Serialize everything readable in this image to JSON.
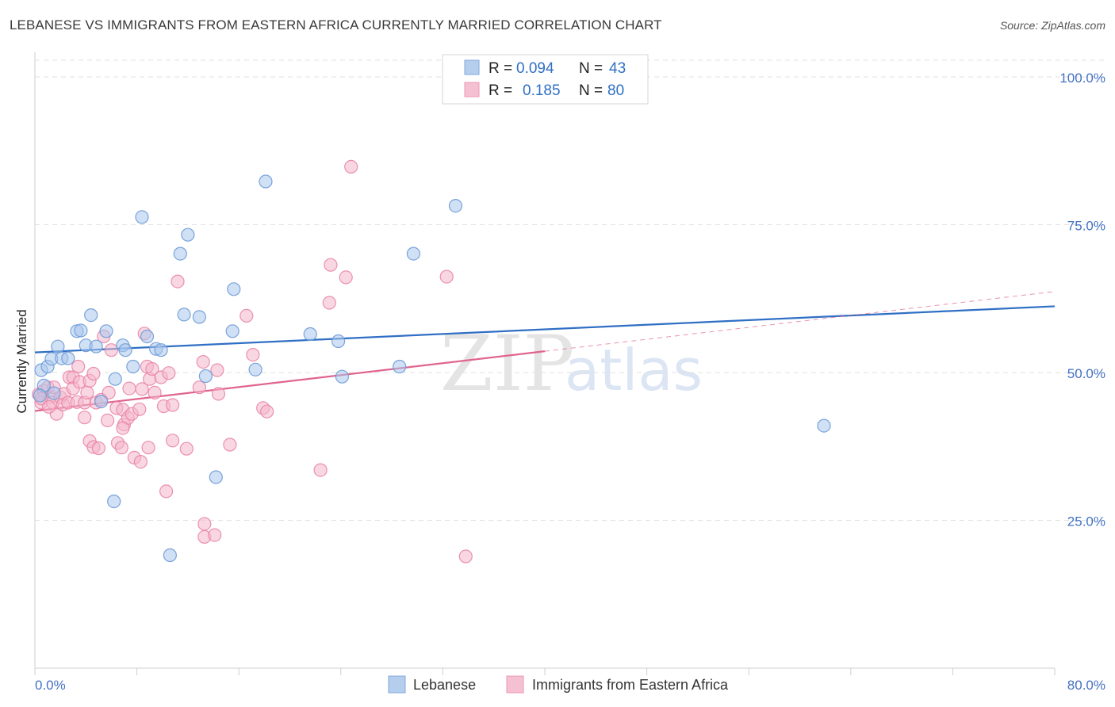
{
  "title": "LEBANESE VS IMMIGRANTS FROM EASTERN AFRICA CURRENTLY MARRIED CORRELATION CHART",
  "source": "Source: ZipAtlas.com",
  "watermark": {
    "zip": "ZIP",
    "atlas": "atlas"
  },
  "colors": {
    "blue_fill": "#a9c6ec",
    "blue_stroke": "#6d9ad6",
    "blue_line": "#2f6fc4",
    "pink_fill": "#f4b7cb",
    "pink_stroke": "#e985a7",
    "pink_line": "#e0648f",
    "grid": "#e2e2e2",
    "tick_label": "#4472c4"
  },
  "legend": {
    "rows": [
      {
        "r_label": "R = ",
        "r_value": "0.094",
        "n_label": "N = ",
        "n_value": "43"
      },
      {
        "r_label": "R = ",
        "r_value": "0.185",
        "n_label": "N = ",
        "n_value": "80"
      }
    ]
  },
  "chart_data": {
    "type": "scatter",
    "title": "LEBANESE VS IMMIGRANTS FROM EASTERN AFRICA CURRENTLY MARRIED CORRELATION CHART",
    "xlabel": "",
    "ylabel": "Currently Married",
    "xlim": [
      0,
      80
    ],
    "ylim": [
      0,
      100
    ],
    "x_tick_labels": [
      "0.0%",
      "80.0%"
    ],
    "y_ticks": [
      25,
      50,
      75,
      100
    ],
    "y_tick_labels": [
      "25.0%",
      "50.0%",
      "75.0%",
      "100.0%"
    ],
    "grid": "horizontal dashed",
    "legend_placement": "top-center",
    "series": [
      {
        "name": "Lebanese",
        "color": "#a9c6ec",
        "R": 0.094,
        "N": 43,
        "trend": {
          "x": [
            0,
            80
          ],
          "y": [
            53.4,
            61.2
          ]
        },
        "points": [
          [
            0.5,
            50.4
          ],
          [
            1.0,
            51.0
          ],
          [
            1.3,
            52.3
          ],
          [
            1.8,
            54.4
          ],
          [
            2.1,
            52.4
          ],
          [
            2.6,
            52.4
          ],
          [
            3.3,
            57.0
          ],
          [
            3.6,
            57.1
          ],
          [
            4.4,
            59.7
          ],
          [
            4.0,
            54.6
          ],
          [
            4.8,
            54.4
          ],
          [
            5.6,
            57.0
          ],
          [
            6.3,
            48.9
          ],
          [
            6.9,
            54.6
          ],
          [
            7.1,
            53.8
          ],
          [
            7.7,
            51.0
          ],
          [
            8.8,
            56.1
          ],
          [
            8.4,
            76.3
          ],
          [
            9.5,
            54.0
          ],
          [
            9.9,
            53.8
          ],
          [
            11.4,
            70.1
          ],
          [
            12.0,
            73.3
          ],
          [
            11.7,
            59.8
          ],
          [
            12.9,
            59.4
          ],
          [
            13.4,
            49.4
          ],
          [
            14.2,
            32.3
          ],
          [
            15.5,
            57.0
          ],
          [
            15.6,
            64.1
          ],
          [
            17.3,
            50.5
          ],
          [
            18.1,
            82.3
          ],
          [
            21.6,
            56.5
          ],
          [
            23.8,
            55.3
          ],
          [
            24.1,
            49.3
          ],
          [
            28.6,
            51.0
          ],
          [
            29.7,
            70.1
          ],
          [
            33.0,
            78.2
          ],
          [
            61.9,
            41.0
          ],
          [
            6.2,
            28.2
          ],
          [
            10.6,
            19.1
          ],
          [
            0.7,
            47.8
          ],
          [
            5.2,
            45.1
          ],
          [
            0.4,
            46.1
          ],
          [
            1.5,
            46.5
          ]
        ]
      },
      {
        "name": "Immigrants from Eastern Africa",
        "color": "#f4b7cb",
        "R": 0.185,
        "N": 80,
        "trend": {
          "x": [
            0,
            40
          ],
          "y": [
            43.5,
            53.6
          ]
        },
        "trend_extension": {
          "x": [
            40,
            80
          ],
          "y": [
            53.6,
            63.7
          ]
        },
        "points": [
          [
            0.3,
            46.3
          ],
          [
            0.5,
            44.9
          ],
          [
            0.7,
            46.9
          ],
          [
            1.0,
            47.5
          ],
          [
            1.2,
            45.9
          ],
          [
            1.4,
            44.9
          ],
          [
            1.5,
            47.5
          ],
          [
            1.7,
            43.0
          ],
          [
            2.0,
            45.8
          ],
          [
            2.2,
            44.6
          ],
          [
            2.3,
            46.4
          ],
          [
            2.6,
            44.9
          ],
          [
            2.7,
            49.2
          ],
          [
            3.0,
            49.2
          ],
          [
            3.0,
            47.3
          ],
          [
            3.3,
            45.0
          ],
          [
            3.4,
            51.0
          ],
          [
            3.5,
            48.4
          ],
          [
            3.9,
            44.9
          ],
          [
            3.9,
            42.4
          ],
          [
            4.1,
            46.6
          ],
          [
            4.3,
            48.6
          ],
          [
            4.3,
            38.4
          ],
          [
            4.6,
            49.8
          ],
          [
            4.6,
            37.4
          ],
          [
            4.8,
            44.9
          ],
          [
            5.0,
            37.2
          ],
          [
            5.2,
            45.4
          ],
          [
            5.4,
            56.1
          ],
          [
            5.7,
            41.9
          ],
          [
            5.8,
            46.6
          ],
          [
            6.0,
            53.8
          ],
          [
            6.4,
            44.0
          ],
          [
            6.5,
            38.1
          ],
          [
            6.8,
            37.3
          ],
          [
            6.9,
            43.7
          ],
          [
            7.0,
            41.2
          ],
          [
            7.3,
            42.3
          ],
          [
            7.4,
            47.3
          ],
          [
            7.6,
            43.0
          ],
          [
            7.8,
            35.6
          ],
          [
            8.2,
            43.8
          ],
          [
            8.3,
            34.9
          ],
          [
            8.4,
            47.2
          ],
          [
            8.6,
            56.6
          ],
          [
            8.8,
            51.0
          ],
          [
            8.9,
            37.3
          ],
          [
            9.0,
            48.9
          ],
          [
            9.2,
            50.6
          ],
          [
            9.4,
            46.6
          ],
          [
            9.9,
            49.2
          ],
          [
            10.1,
            44.3
          ],
          [
            10.3,
            29.9
          ],
          [
            10.5,
            49.9
          ],
          [
            10.8,
            44.5
          ],
          [
            10.8,
            38.5
          ],
          [
            11.2,
            65.4
          ],
          [
            11.9,
            37.1
          ],
          [
            12.9,
            47.5
          ],
          [
            13.2,
            51.8
          ],
          [
            13.3,
            24.4
          ],
          [
            13.3,
            22.2
          ],
          [
            14.1,
            22.5
          ],
          [
            14.3,
            50.4
          ],
          [
            14.4,
            46.4
          ],
          [
            15.3,
            37.8
          ],
          [
            16.6,
            59.6
          ],
          [
            17.1,
            53.0
          ],
          [
            17.9,
            44.0
          ],
          [
            18.2,
            43.4
          ],
          [
            22.4,
            33.5
          ],
          [
            23.2,
            68.2
          ],
          [
            23.1,
            61.8
          ],
          [
            24.4,
            66.1
          ],
          [
            24.8,
            84.8
          ],
          [
            32.3,
            66.2
          ],
          [
            33.8,
            18.9
          ],
          [
            0.5,
            45.6
          ],
          [
            1.1,
            44.2
          ],
          [
            6.9,
            40.6
          ]
        ]
      }
    ]
  },
  "bottom_legend": [
    "Lebanese",
    "Immigrants from Eastern Africa"
  ]
}
